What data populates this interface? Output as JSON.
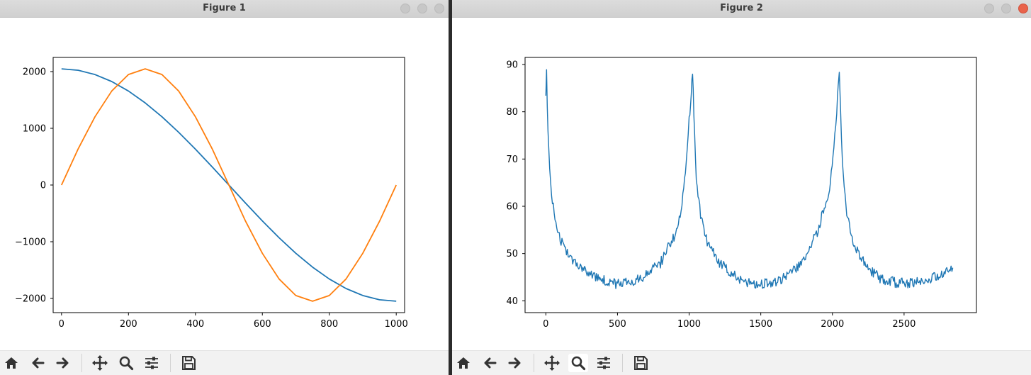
{
  "windows": [
    {
      "title": "Figure 1",
      "toolbar": [
        "home-icon",
        "back-icon",
        "forward-icon",
        "pan-icon",
        "zoom-icon",
        "configure-icon",
        "save-icon"
      ]
    },
    {
      "title": "Figure 2",
      "toolbar": [
        "home-icon",
        "back-icon",
        "forward-icon",
        "pan-icon",
        "zoom-icon",
        "configure-icon",
        "save-icon"
      ]
    }
  ],
  "colors": {
    "series1": "#1f77b4",
    "series2": "#ff7f0e",
    "close_button": "#e9634b"
  },
  "chart_data": [
    {
      "type": "line",
      "title": "",
      "xlabel": "",
      "ylabel": "",
      "xlim": [
        -25,
        1025
      ],
      "ylim": [
        -2250,
        2250
      ],
      "xticks": [
        0,
        200,
        400,
        600,
        800,
        1000
      ],
      "xtick_labels": [
        "0",
        "200",
        "400",
        "600",
        "800",
        "1000"
      ],
      "yticks": [
        -2000,
        -1000,
        0,
        1000,
        2000
      ],
      "ytick_labels": [
        "−2000",
        "−1000",
        "0",
        "1000",
        "2000"
      ],
      "grid": false,
      "series": [
        {
          "color": "#1f77b4",
          "x": [
            0,
            50,
            100,
            150,
            200,
            250,
            300,
            350,
            400,
            450,
            500,
            550,
            600,
            650,
            700,
            750,
            800,
            850,
            900,
            950,
            1000
          ],
          "y": [
            2048,
            2023,
            1948,
            1825,
            1657,
            1448,
            1204,
            930,
            633,
            320,
            0,
            -320,
            -633,
            -930,
            -1204,
            -1448,
            -1657,
            -1825,
            -1948,
            -2023,
            -2048
          ]
        },
        {
          "color": "#ff7f0e",
          "x": [
            0,
            50,
            100,
            150,
            200,
            250,
            300,
            350,
            400,
            450,
            500,
            550,
            600,
            650,
            700,
            750,
            800,
            850,
            900,
            950,
            1000
          ],
          "y": [
            0,
            640,
            1204,
            1657,
            1948,
            2048,
            1948,
            1657,
            1204,
            640,
            0,
            -640,
            -1204,
            -1657,
            -1948,
            -2048,
            -1948,
            -1657,
            -1204,
            -640,
            0
          ]
        }
      ]
    },
    {
      "type": "line",
      "title": "",
      "xlabel": "",
      "ylabel": "",
      "xlim": [
        -145,
        3005
      ],
      "ylim": [
        37.5,
        91.5
      ],
      "xticks": [
        0,
        500,
        1000,
        1500,
        2000,
        2500
      ],
      "xtick_labels": [
        "0",
        "500",
        "1000",
        "1500",
        "2000",
        "2500"
      ],
      "yticks": [
        40,
        50,
        60,
        70,
        80,
        90
      ],
      "ytick_labels": [
        "40",
        "50",
        "60",
        "70",
        "80",
        "90"
      ],
      "grid": false,
      "series": [
        {
          "color": "#1f77b4",
          "x": [
            0,
            5,
            10,
            20,
            40,
            70,
            100,
            150,
            200,
            300,
            400,
            500,
            600,
            700,
            800,
            900,
            950,
            980,
            1000,
            1015,
            1024,
            1033,
            1050,
            1080,
            1120,
            1200,
            1300,
            1400,
            1500,
            1600,
            1700,
            1800,
            1900,
            1980,
            2010,
            2030,
            2040,
            2048,
            2056,
            2070,
            2100,
            2150,
            2250,
            2350,
            2450,
            2550,
            2650,
            2750,
            2840
          ],
          "y": [
            84.5,
            89,
            80,
            72,
            62,
            57,
            53,
            50,
            48.5,
            46,
            44.5,
            43.5,
            44,
            45.5,
            48,
            54,
            60,
            69,
            78,
            84,
            88.5,
            79,
            66,
            58,
            53,
            48.5,
            45.5,
            44,
            43.5,
            44,
            45.5,
            48.5,
            55,
            64,
            72,
            80,
            86,
            88.6,
            81,
            69,
            58,
            52,
            46.5,
            44.5,
            43.8,
            43.8,
            44.3,
            45.5,
            47
          ]
        }
      ]
    }
  ]
}
